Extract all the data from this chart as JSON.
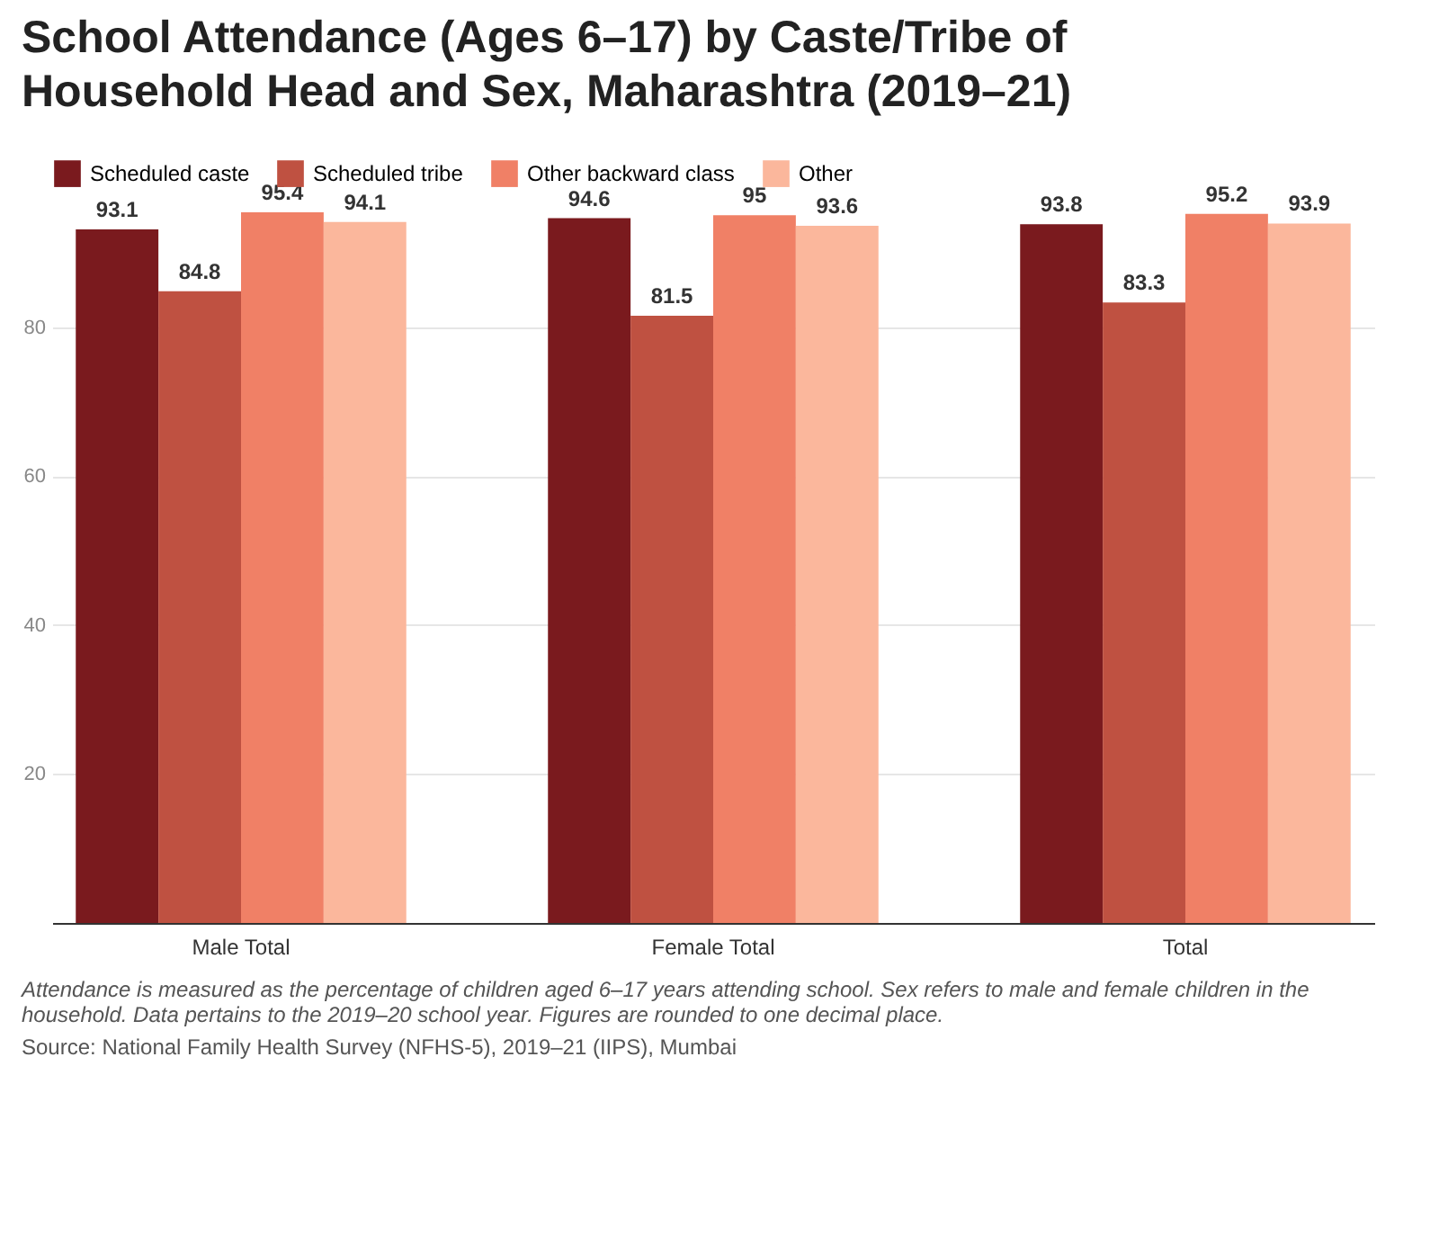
{
  "chart_data": {
    "type": "bar",
    "title": "School Attendance (Ages 6–17) by Caste/Tribe of Household Head and Sex, Maharashtra (2019–21)",
    "categories": [
      "Male Total",
      "Female Total",
      "Total"
    ],
    "series": [
      {
        "name": "Scheduled caste",
        "color": "#7a1a1e",
        "values": [
          93.1,
          94.6,
          93.8
        ]
      },
      {
        "name": "Scheduled tribe",
        "color": "#bf5141",
        "values": [
          84.8,
          81.5,
          83.3
        ]
      },
      {
        "name": "Other backward class",
        "color": "#f08066",
        "values": [
          95.4,
          95,
          95.2
        ]
      },
      {
        "name": "Other",
        "color": "#fbb79c",
        "values": [
          94.1,
          93.6,
          93.9
        ]
      }
    ],
    "ylim": [
      0,
      95.4
    ],
    "yticks": [
      20,
      40,
      60,
      80
    ],
    "grid": "y",
    "legend": "top left",
    "data_labels": true,
    "annotations": [
      "Attendance is measured as the percentage of children aged 6–17 years attending school. Sex refers to male and female children in the household. Data pertains to the 2019–20 school year. Figures are rounded to one decimal place.",
      "Source: National Family Health Survey (NFHS-5), 2019–21 (IIPS), Mumbai"
    ]
  }
}
